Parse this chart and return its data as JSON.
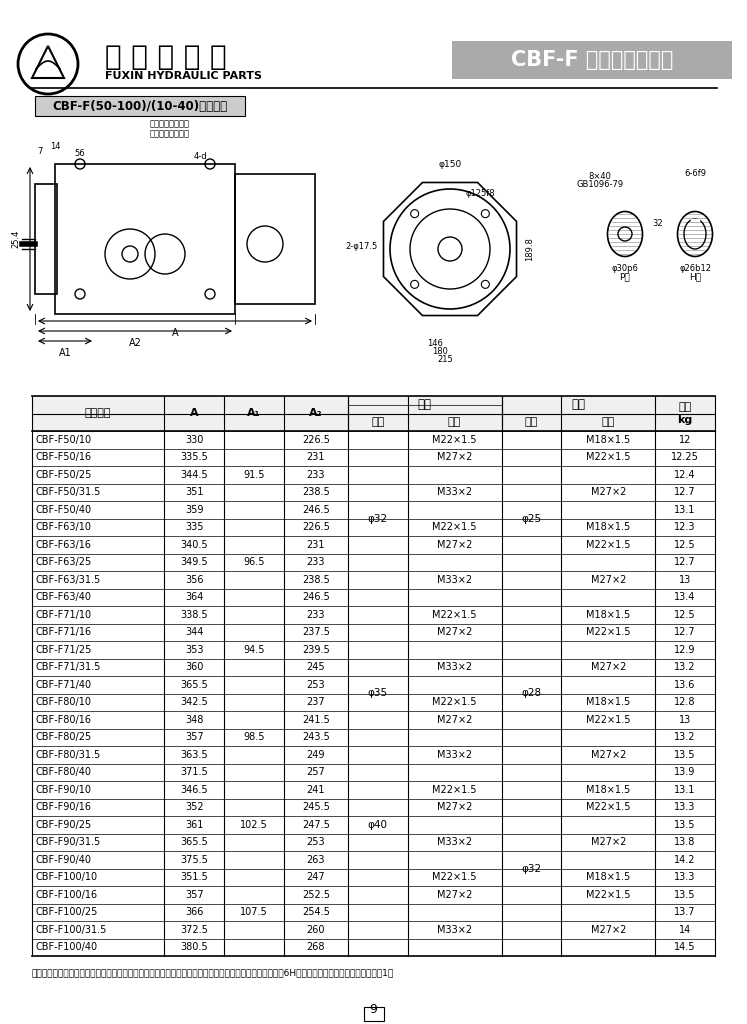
{
  "page_bg": "#ffffff",
  "header": {
    "company_cn": "阜 新 液 压 件",
    "company_en": "FUXIN HYDRAULIC PARTS",
    "product_title": "CBF-F 系列高压齿轮泵",
    "product_title_bg": "#b0b0b0",
    "subtitle_box": "CBF-F(50-100)/(10-40)型号规格"
  },
  "table_title_row1": [
    "产品型号",
    "A",
    "A₁",
    "A₂",
    "吸口",
    "",
    "出口",
    "",
    "重量"
  ],
  "table_title_row2": [
    "",
    "",
    "",
    "",
    "前泵",
    "后泵",
    "前泵",
    "后泵",
    "kg"
  ],
  "col_widths": [
    1.55,
    0.7,
    0.7,
    0.75,
    0.7,
    1.1,
    0.7,
    1.1,
    0.7
  ],
  "rows": [
    [
      "CBF-F50/10",
      "330",
      "",
      "226.5",
      "",
      "M22×1.5",
      "",
      "M18×1.5",
      "12"
    ],
    [
      "CBF-F50/16",
      "335.5",
      "",
      "231",
      "",
      "M27×2",
      "",
      "M22×1.5",
      "12.25"
    ],
    [
      "CBF-F50/25",
      "344.5",
      "91.5",
      "233",
      "",
      "",
      "",
      "",
      "12.4"
    ],
    [
      "CBF-F50/31.5",
      "351",
      "",
      "238.5",
      "",
      "M33×2",
      "",
      "M27×2",
      "12.7"
    ],
    [
      "CBF-F50/40",
      "359",
      "",
      "246.5",
      "φ32",
      "",
      "φ25",
      "",
      "13.1"
    ],
    [
      "CBF-F63/10",
      "335",
      "",
      "226.5",
      "",
      "M22×1.5",
      "",
      "M18×1.5",
      "12.3"
    ],
    [
      "CBF-F63/16",
      "340.5",
      "",
      "231",
      "",
      "M27×2",
      "",
      "M22×1.5",
      "12.5"
    ],
    [
      "CBF-F63/25",
      "349.5",
      "96.5",
      "233",
      "",
      "",
      "",
      "",
      "12.7"
    ],
    [
      "CBF-F63/31.5",
      "356",
      "",
      "238.5",
      "",
      "M33×2",
      "",
      "M27×2",
      "13"
    ],
    [
      "CBF-F63/40",
      "364",
      "",
      "246.5",
      "",
      "",
      "",
      "",
      "13.4"
    ],
    [
      "CBF-F71/10",
      "338.5",
      "",
      "233",
      "",
      "M22×1.5",
      "",
      "M18×1.5",
      "12.5"
    ],
    [
      "CBF-F71/16",
      "344",
      "",
      "237.5",
      "",
      "M27×2",
      "",
      "M22×1.5",
      "12.7"
    ],
    [
      "CBF-F71/25",
      "353",
      "94.5",
      "239.5",
      "",
      "",
      "",
      "",
      "12.9"
    ],
    [
      "CBF-F71/31.5",
      "360",
      "",
      "245",
      "",
      "M33×2",
      "",
      "M27×2",
      "13.2"
    ],
    [
      "CBF-F71/40",
      "365.5",
      "",
      "253",
      "φ35",
      "",
      "φ28",
      "",
      "13.6"
    ],
    [
      "CBF-F80/10",
      "342.5",
      "",
      "237",
      "",
      "M22×1.5",
      "",
      "M18×1.5",
      "12.8"
    ],
    [
      "CBF-F80/16",
      "348",
      "",
      "241.5",
      "",
      "M27×2",
      "",
      "M22×1.5",
      "13"
    ],
    [
      "CBF-F80/25",
      "357",
      "98.5",
      "243.5",
      "",
      "",
      "",
      "",
      "13.2"
    ],
    [
      "CBF-F80/31.5",
      "363.5",
      "",
      "249",
      "",
      "M33×2",
      "",
      "M27×2",
      "13.5"
    ],
    [
      "CBF-F80/40",
      "371.5",
      "",
      "257",
      "",
      "",
      "",
      "",
      "13.9"
    ],
    [
      "CBF-F90/10",
      "346.5",
      "",
      "241",
      "",
      "M22×1.5",
      "",
      "M18×1.5",
      "13.1"
    ],
    [
      "CBF-F90/16",
      "352",
      "",
      "245.5",
      "",
      "M27×2",
      "",
      "M22×1.5",
      "13.3"
    ],
    [
      "CBF-F90/25",
      "361",
      "102.5",
      "247.5",
      "",
      "",
      "",
      "",
      "13.5"
    ],
    [
      "CBF-F90/31.5",
      "365.5",
      "",
      "253",
      "",
      "M33×2",
      "",
      "M27×2",
      "13.8"
    ],
    [
      "CBF-F90/40",
      "375.5",
      "",
      "263",
      "φ40",
      "",
      "φ32",
      "",
      "14.2"
    ],
    [
      "CBF-F100/10",
      "351.5",
      "",
      "247",
      "",
      "M22×1.5",
      "",
      "M18×1.5",
      "13.3"
    ],
    [
      "CBF-F100/16",
      "357",
      "",
      "252.5",
      "",
      "M27×2",
      "",
      "M22×1.5",
      "13.5"
    ],
    [
      "CBF-F100/25",
      "366",
      "107.5",
      "254.5",
      "",
      "",
      "",
      "",
      "13.7"
    ],
    [
      "CBF-F100/31.5",
      "372.5",
      "",
      "260",
      "",
      "M33×2",
      "",
      "M27×2",
      "14"
    ],
    [
      "CBF-F100/40",
      "380.5",
      "",
      "268",
      "",
      "",
      "",
      "",
      "14.5"
    ]
  ],
  "note": "注：前后泵各自有吸、出油口，位置在各自泵体的两侧。两侧距离与相应单泵距离相同。连接内螺纹精度为6H，前泵相应吸口的有关连接尺寸见表1。",
  "page_number": "9",
  "merged_cells_col4": [
    {
      "rows": [
        0,
        4
      ],
      "value": "φ32"
    },
    {
      "rows": [
        5,
        9
      ],
      "value": ""
    },
    {
      "rows": [
        10,
        14
      ],
      "value": "φ35"
    },
    {
      "rows": [
        15,
        19
      ],
      "value": ""
    },
    {
      "rows": [
        20,
        24
      ],
      "value": "φ40"
    },
    {
      "rows": [
        25,
        29
      ],
      "value": ""
    }
  ],
  "merged_cells_col6": [
    {
      "rows": [
        0,
        4
      ],
      "value": "φ25"
    },
    {
      "rows": [
        5,
        9
      ],
      "value": ""
    },
    {
      "rows": [
        10,
        14
      ],
      "value": "φ28"
    },
    {
      "rows": [
        15,
        19
      ],
      "value": ""
    },
    {
      "rows": [
        20,
        24
      ],
      "value": "φ32"
    },
    {
      "rows": [
        25,
        29
      ],
      "value": ""
    }
  ]
}
